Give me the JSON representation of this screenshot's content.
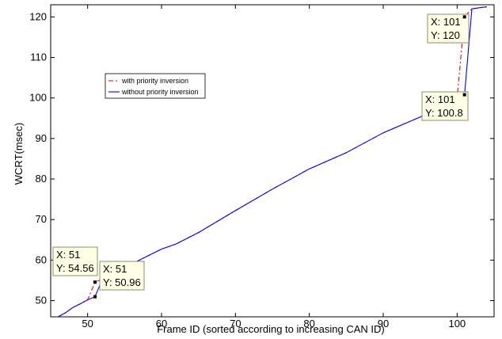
{
  "chart_data": {
    "type": "line",
    "xlabel": "Frame ID (sorted according to increasing CAN ID)",
    "ylabel": "WCRT(msec)",
    "xlim": [
      45,
      105
    ],
    "ylim": [
      46,
      123
    ],
    "xticks": [
      50,
      60,
      70,
      80,
      90,
      100
    ],
    "yticks": [
      50,
      60,
      70,
      80,
      90,
      100,
      110,
      120
    ],
    "grid": false,
    "legend_position": "upper-left",
    "series": [
      {
        "name": "with priority inversion",
        "color": "#ff0000",
        "style": "dash-dot",
        "x": [
          46,
          47,
          48,
          49,
          50,
          51,
          52,
          53,
          55,
          57,
          60,
          62,
          65,
          70,
          75,
          80,
          85,
          90,
          95,
          100,
          101,
          102,
          104
        ],
        "y": [
          46.0,
          47.0,
          48.3,
          49.2,
          50.2,
          54.56,
          55.3,
          56.2,
          58.0,
          60.0,
          62.7,
          64.0,
          66.8,
          72.2,
          77.5,
          82.5,
          86.5,
          91.4,
          95.3,
          100.0,
          120.0,
          122.0,
          122.5
        ]
      },
      {
        "name": "without priority inversion",
        "color": "#0000ff",
        "style": "solid",
        "x": [
          46,
          47,
          48,
          49,
          50,
          51,
          52,
          53,
          55,
          57,
          60,
          62,
          65,
          70,
          75,
          80,
          85,
          90,
          95,
          100,
          101,
          102,
          104
        ],
        "y": [
          46.0,
          47.0,
          48.3,
          49.2,
          50.2,
          50.96,
          55.3,
          56.2,
          58.0,
          60.0,
          62.7,
          64.0,
          66.8,
          72.2,
          77.5,
          82.5,
          86.5,
          91.4,
          95.3,
          100.0,
          100.8,
          122.0,
          122.5
        ]
      }
    ],
    "annotations": [
      {
        "id": "tip-51-a",
        "x": 51,
        "y": 54.56,
        "lines": [
          "X: 51",
          "Y: 54.56"
        ]
      },
      {
        "id": "tip-51-b",
        "x": 51,
        "y": 50.96,
        "lines": [
          "X: 51",
          "Y: 50.96"
        ]
      },
      {
        "id": "tip-101-a",
        "x": 101,
        "y": 120,
        "lines": [
          "X: 101",
          "Y: 120"
        ]
      },
      {
        "id": "tip-101-b",
        "x": 101,
        "y": 100.8,
        "lines": [
          "X: 101",
          "Y: 100.8"
        ]
      }
    ]
  }
}
